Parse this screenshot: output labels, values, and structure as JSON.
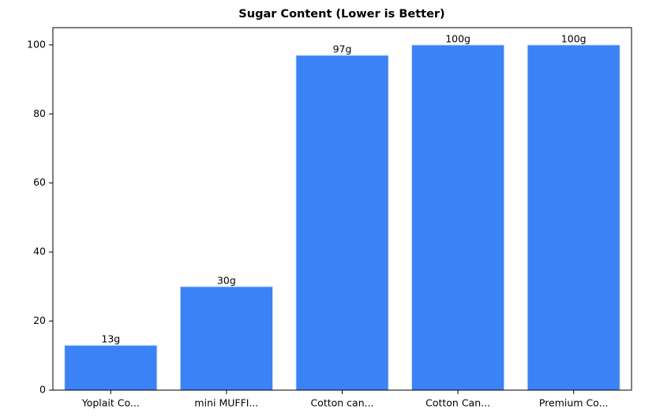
{
  "chart_data": {
    "type": "bar",
    "title": "Sugar Content (Lower is Better)",
    "categories": [
      "Yoplait Co...",
      "mini MUFFI...",
      "Cotton can...",
      "Cotton Can...",
      "Premium Co..."
    ],
    "values": [
      13,
      30,
      97,
      100,
      100
    ],
    "value_labels": [
      "13g",
      "30g",
      "97g",
      "100g",
      "100g"
    ],
    "color": "#3b82f6",
    "ylim": [
      0,
      105
    ],
    "yticks": [
      0,
      20,
      40,
      60,
      80,
      100
    ]
  }
}
